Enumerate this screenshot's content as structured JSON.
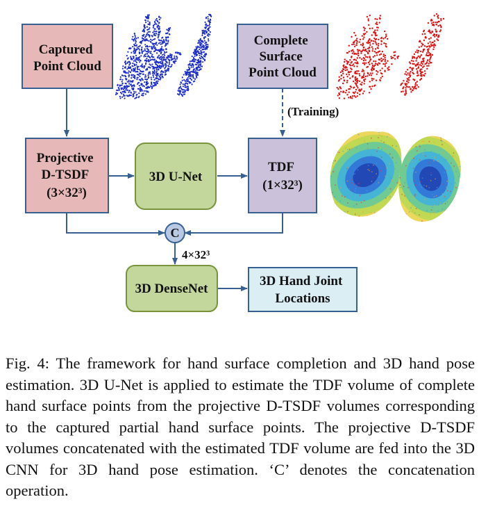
{
  "boxes": {
    "captured": [
      "Captured",
      "Point Cloud"
    ],
    "complete": [
      "Complete",
      "Surface",
      "Point Cloud"
    ],
    "projective": [
      "Projective",
      "D-TSDF",
      "(3×32³)"
    ],
    "unet": [
      "3D U-Net"
    ],
    "tdf": [
      "TDF",
      "(1×32³)"
    ],
    "densenet": [
      "3D DenseNet"
    ],
    "joints": [
      "3D Hand Joint",
      "Locations"
    ]
  },
  "labels": {
    "training": "(Training)",
    "concat_symbol": "C",
    "concat_size": "4×32³"
  },
  "colors": {
    "pink_fill": "#e6b9b8",
    "lavender_fill": "#ccc1da",
    "green_fill": "#c3d69b",
    "green_border": "#77933c",
    "blue_fill": "#dbeef4",
    "arrow": "#376092",
    "point_blue": "#1a2ccc",
    "point_red": "#e01010"
  },
  "caption": "Fig. 4: The framework for hand surface completion and 3D hand pose estimation. 3D U-Net is applied to estimate the TDF volume of complete hand surface points from the projective D-TSDF volumes corresponding to the captured partial hand surface points. The projective D-TSDF volumes concatenated with the estimated TDF volume are fed into the 3D CNN for 3D hand pose estimation. ‘C’ denotes the concatenation operation."
}
